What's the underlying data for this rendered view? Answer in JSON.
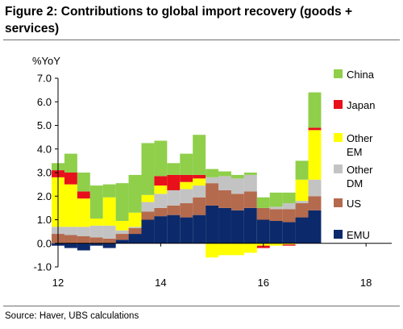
{
  "header": {
    "title": "Figure 2:  Contributions to global import recovery (goods + services)"
  },
  "footer": {
    "source": "Source:  Haver, UBS calculations"
  },
  "colors": {
    "EMU": "#0c2a6b",
    "US": "#b46a4d",
    "Other DM": "#c3c3c3",
    "Other EM": "#ffff00",
    "Japan": "#e8101b",
    "China": "#8fcf4a"
  },
  "chart_data": {
    "type": "bar",
    "stacked": true,
    "ylabel": "%YoY",
    "ylim": [
      -1.0,
      7.0
    ],
    "yticks": [
      "7.0",
      "6.0",
      "5.0",
      "4.0",
      "3.0",
      "2.0",
      "1.0",
      "0.0",
      "-1.0"
    ],
    "xlim": [
      2012,
      2018.5
    ],
    "xticks": [
      {
        "label": "12",
        "value": 2012
      },
      {
        "label": "14",
        "value": 2014
      },
      {
        "label": "16",
        "value": 2016
      },
      {
        "label": "18",
        "value": 2018
      }
    ],
    "grid": false,
    "legend_position": "right",
    "x": [
      2012.0,
      2012.25,
      2012.5,
      2012.75,
      2013.0,
      2013.25,
      2013.5,
      2013.75,
      2014.0,
      2014.25,
      2014.5,
      2014.75,
      2015.0,
      2015.25,
      2015.5,
      2015.75,
      2016.0,
      2016.25,
      2016.5,
      2016.75,
      2017.0
    ],
    "series": [
      {
        "name": "EMU",
        "values": [
          -0.1,
          -0.2,
          -0.3,
          -0.1,
          -0.2,
          0.15,
          0.4,
          1.0,
          1.15,
          1.2,
          1.1,
          1.2,
          1.6,
          1.5,
          1.4,
          1.5,
          1.0,
          0.95,
          0.9,
          1.1,
          1.4
        ]
      },
      {
        "name": "US",
        "values": [
          0.4,
          0.35,
          0.3,
          0.25,
          0.2,
          0.25,
          0.25,
          0.35,
          0.35,
          0.4,
          0.6,
          0.75,
          0.95,
          0.75,
          0.7,
          0.7,
          0.5,
          0.5,
          0.55,
          0.6,
          0.6
        ]
      },
      {
        "name": "Other DM",
        "values": [
          0.3,
          0.35,
          0.4,
          0.5,
          0.55,
          0.15,
          0.05,
          0.4,
          0.6,
          0.65,
          0.6,
          0.5,
          0.25,
          0.6,
          0.65,
          0.7,
          0.0,
          0.1,
          0.25,
          0.1,
          0.7
        ]
      },
      {
        "name": "Other EM",
        "values": [
          2.1,
          1.8,
          1.2,
          0.3,
          1.2,
          0.4,
          0.6,
          0.3,
          0.35,
          0.0,
          0.3,
          0.3,
          -0.6,
          -0.5,
          -0.5,
          -0.4,
          -0.1,
          -0.1,
          -0.05,
          0.9,
          2.1
        ]
      },
      {
        "name": "Japan",
        "values": [
          0.3,
          0.5,
          0.3,
          0.0,
          0.0,
          0.0,
          0.0,
          0.0,
          0.4,
          0.65,
          0.3,
          0.15,
          0.0,
          0.0,
          0.0,
          0.0,
          -0.1,
          0.0,
          -0.05,
          0.0,
          0.1
        ]
      },
      {
        "name": "China",
        "values": [
          0.3,
          0.8,
          0.8,
          1.4,
          0.55,
          1.6,
          1.6,
          2.2,
          1.5,
          0.5,
          0.9,
          1.7,
          0.35,
          0.2,
          0.15,
          0.1,
          0.45,
          0.6,
          0.45,
          0.8,
          1.5
        ]
      }
    ],
    "legend_order": [
      "China",
      "Japan",
      "Other EM",
      "Other DM",
      "US",
      "EMU"
    ]
  }
}
